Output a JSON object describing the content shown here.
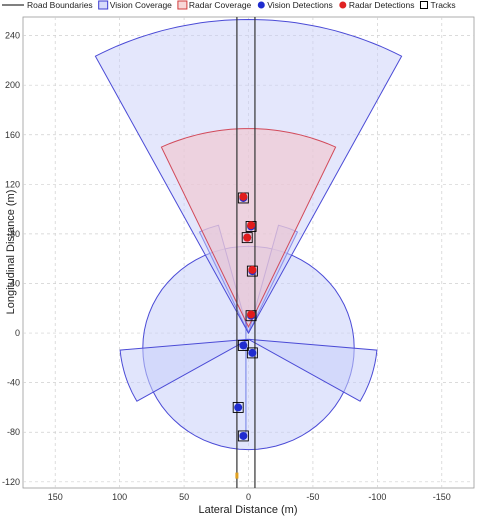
{
  "legend": {
    "items": [
      {
        "label": "Road Boundaries",
        "kind": "line",
        "color": "#000000"
      },
      {
        "label": "Vision Coverage",
        "kind": "patch",
        "color": "#3b3bd1",
        "fill": "#d7dbfb"
      },
      {
        "label": "Radar Coverage",
        "kind": "patch",
        "color": "#d13b3b",
        "fill": "#f8d8d8"
      },
      {
        "label": "Vision Detections",
        "kind": "dot",
        "color": "#1f2ccf"
      },
      {
        "label": "Radar Detections",
        "kind": "dot",
        "color": "#e02222"
      },
      {
        "label": "Tracks",
        "kind": "square",
        "color": "#000000"
      }
    ]
  },
  "colors": {
    "vision_edge": "#4b4bd6",
    "vision_fill": "#c9cffa",
    "radar_edge": "#d24a5a",
    "radar_fill": "#f4c4cc",
    "vision_det": "#1f2ccf",
    "radar_det": "#e01c1c",
    "road": "#333333",
    "ego": "#e0a020"
  },
  "chart_data": {
    "type": "scatter",
    "xlabel": "Lateral Distance (m)",
    "ylabel": "Longitudinal Distance (m)",
    "xlim": [
      175,
      -175
    ],
    "ylim": [
      -125,
      255
    ],
    "x_ticks": [
      150,
      100,
      50,
      0,
      -50,
      -100,
      -150
    ],
    "y_ticks": [
      -120,
      -80,
      -40,
      0,
      40,
      80,
      120,
      160,
      200,
      240
    ],
    "grid": true,
    "x_reversed": true,
    "road_boundaries_x": [
      9,
      -5
    ],
    "road_y_range": [
      -125,
      255
    ],
    "vision_sensors": [
      {
        "name": "front",
        "origin": [
          0,
          0
        ],
        "dir_deg": 90,
        "fov_deg": 40,
        "range": 250
      },
      {
        "name": "short",
        "origin": [
          0,
          0
        ],
        "dir_deg": 90,
        "fov_deg": 360,
        "range": 83
      },
      {
        "name": "front-narrow",
        "origin": [
          0,
          0
        ],
        "dir_deg": 90,
        "fov_deg": 30,
        "range": 80
      },
      {
        "name": "rear",
        "origin": [
          0,
          0
        ],
        "dir_deg": 270,
        "fov_deg": 360,
        "range": 0
      },
      {
        "name": "left-side",
        "origin": [
          0,
          0
        ],
        "dir_deg": 180,
        "fov_deg": 30,
        "range": 100
      },
      {
        "name": "right-side",
        "origin": [
          0,
          0
        ],
        "dir_deg": 0,
        "fov_deg": 30,
        "range": 100
      }
    ],
    "radar_sensor": {
      "origin": [
        0,
        0
      ],
      "dir_deg": 90,
      "fov_deg": 40,
      "range": 165
    },
    "vision_detections": [
      [
        4,
        109
      ],
      [
        -2,
        86
      ],
      [
        1,
        77
      ],
      [
        -3,
        50
      ],
      [
        -2,
        14
      ],
      [
        4,
        -10
      ],
      [
        -3,
        -16
      ],
      [
        8,
        -60
      ],
      [
        4,
        -83
      ]
    ],
    "radar_detections": [
      [
        4,
        110
      ],
      [
        -2,
        87
      ],
      [
        1,
        77
      ],
      [
        -3,
        51
      ],
      [
        -2,
        15
      ]
    ],
    "tracks": [
      [
        4,
        109
      ],
      [
        -2,
        86
      ],
      [
        1,
        77
      ],
      [
        -3,
        50
      ],
      [
        -2,
        14
      ],
      [
        4,
        -10
      ],
      [
        -3,
        -16
      ],
      [
        8,
        -60
      ],
      [
        4,
        -83
      ]
    ],
    "ego_y": -115
  }
}
